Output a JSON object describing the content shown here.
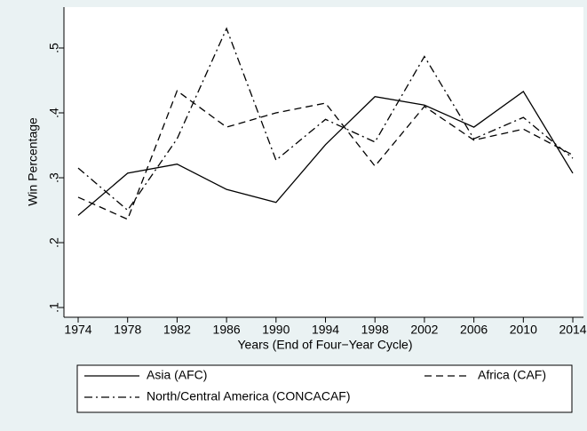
{
  "chart_data": {
    "type": "line",
    "xlabel": "Years (End of Four−Year Cycle)",
    "ylabel": "Win Percentage",
    "x": [
      1974,
      1978,
      1982,
      1986,
      1990,
      1994,
      1998,
      2002,
      2006,
      2010,
      2014
    ],
    "series": [
      {
        "name": "Asia (AFC)",
        "color": "#000000",
        "dash": "solid",
        "values": [
          0.242,
          0.307,
          0.321,
          0.282,
          0.262,
          0.351,
          0.425,
          0.412,
          0.378,
          0.433,
          0.307
        ]
      },
      {
        "name": "Africa (CAF)",
        "color": "#000000",
        "dash": "dashed",
        "values": [
          0.27,
          0.236,
          0.434,
          0.378,
          0.4,
          0.415,
          0.318,
          0.41,
          0.358,
          0.375,
          0.335
        ]
      },
      {
        "name": "North/Central America (CONCACAF)",
        "color": "#000000",
        "dash": "dashdot",
        "values": [
          0.315,
          0.25,
          0.36,
          0.53,
          0.327,
          0.39,
          0.355,
          0.487,
          0.36,
          0.393,
          0.33
        ]
      }
    ],
    "xlim": [
      1972.85,
      2014.86
    ],
    "ylim": [
      0.085,
      0.563
    ],
    "xticks": [
      1974,
      1978,
      1982,
      1986,
      1990,
      1994,
      1998,
      2002,
      2006,
      2010,
      2014
    ],
    "yticks": [
      {
        "value": 0.1,
        "label": ".1"
      },
      {
        "value": 0.2,
        "label": ".2"
      },
      {
        "value": 0.3,
        "label": ".3"
      },
      {
        "value": 0.4,
        "label": ".4"
      },
      {
        "value": 0.5,
        "label": ".5"
      }
    ],
    "grid": false,
    "legend": "bottom"
  }
}
